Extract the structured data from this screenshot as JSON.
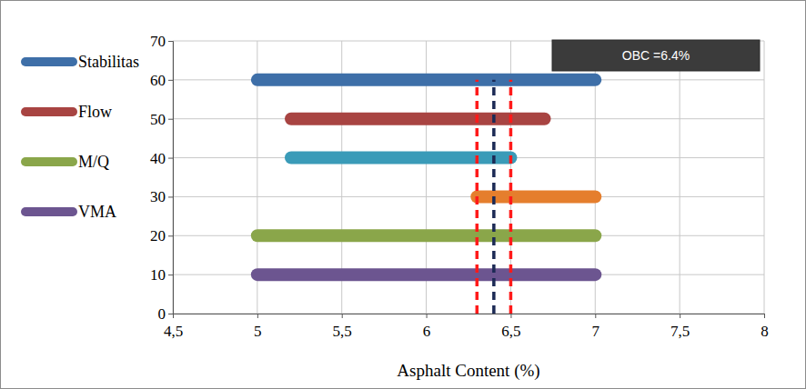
{
  "chart_data": {
    "type": "line",
    "xlabel": "Asphalt Content (%)",
    "annotations": [
      "OBC =6.4%"
    ],
    "xlim": [
      4.5,
      8
    ],
    "ylim": [
      0,
      70
    ],
    "xticks": [
      {
        "value": 4.5,
        "label": "4,5"
      },
      5,
      {
        "value": 5.5,
        "label": "5,5"
      },
      6,
      {
        "value": 6.5,
        "label": "6,5"
      },
      7,
      {
        "value": 7.5,
        "label": "7,5"
      },
      8
    ],
    "yticks": [
      0,
      10,
      20,
      30,
      40,
      50,
      60,
      70
    ],
    "grid": true,
    "legend": "left",
    "series": [
      {
        "name": "Stabilitas",
        "color": "#3e6fa8",
        "x": [
          5,
          7
        ],
        "values": [
          60,
          60
        ]
      },
      {
        "name": "Flow",
        "color": "#a84442",
        "x": [
          5.2,
          6.7
        ],
        "values": [
          50,
          50
        ]
      },
      {
        "color": "#3a9bb8",
        "x": [
          5.2,
          6.5
        ],
        "values": [
          40,
          40
        ]
      },
      {
        "color": "#e57e2d",
        "x": [
          6.3,
          7
        ],
        "values": [
          30,
          30
        ]
      },
      {
        "name": "M/Q",
        "color": "#8aa64a",
        "x": [
          5,
          7
        ],
        "values": [
          20,
          20
        ]
      },
      {
        "name": "VMA",
        "color": "#6c5590",
        "x": [
          5,
          7
        ],
        "values": [
          10,
          10
        ]
      },
      {
        "color": "#ff1a1a",
        "line_style": "dashed",
        "x": [
          6.3,
          6.3
        ],
        "values": [
          0,
          60
        ]
      },
      {
        "color": "#ff1a1a",
        "line_style": "dashed",
        "x": [
          6.5,
          6.5
        ],
        "values": [
          0,
          60
        ]
      },
      {
        "color": "#1c2a55",
        "line_style": "dashed",
        "x": [
          6.4,
          6.4
        ],
        "values": [
          0,
          60
        ]
      }
    ]
  }
}
